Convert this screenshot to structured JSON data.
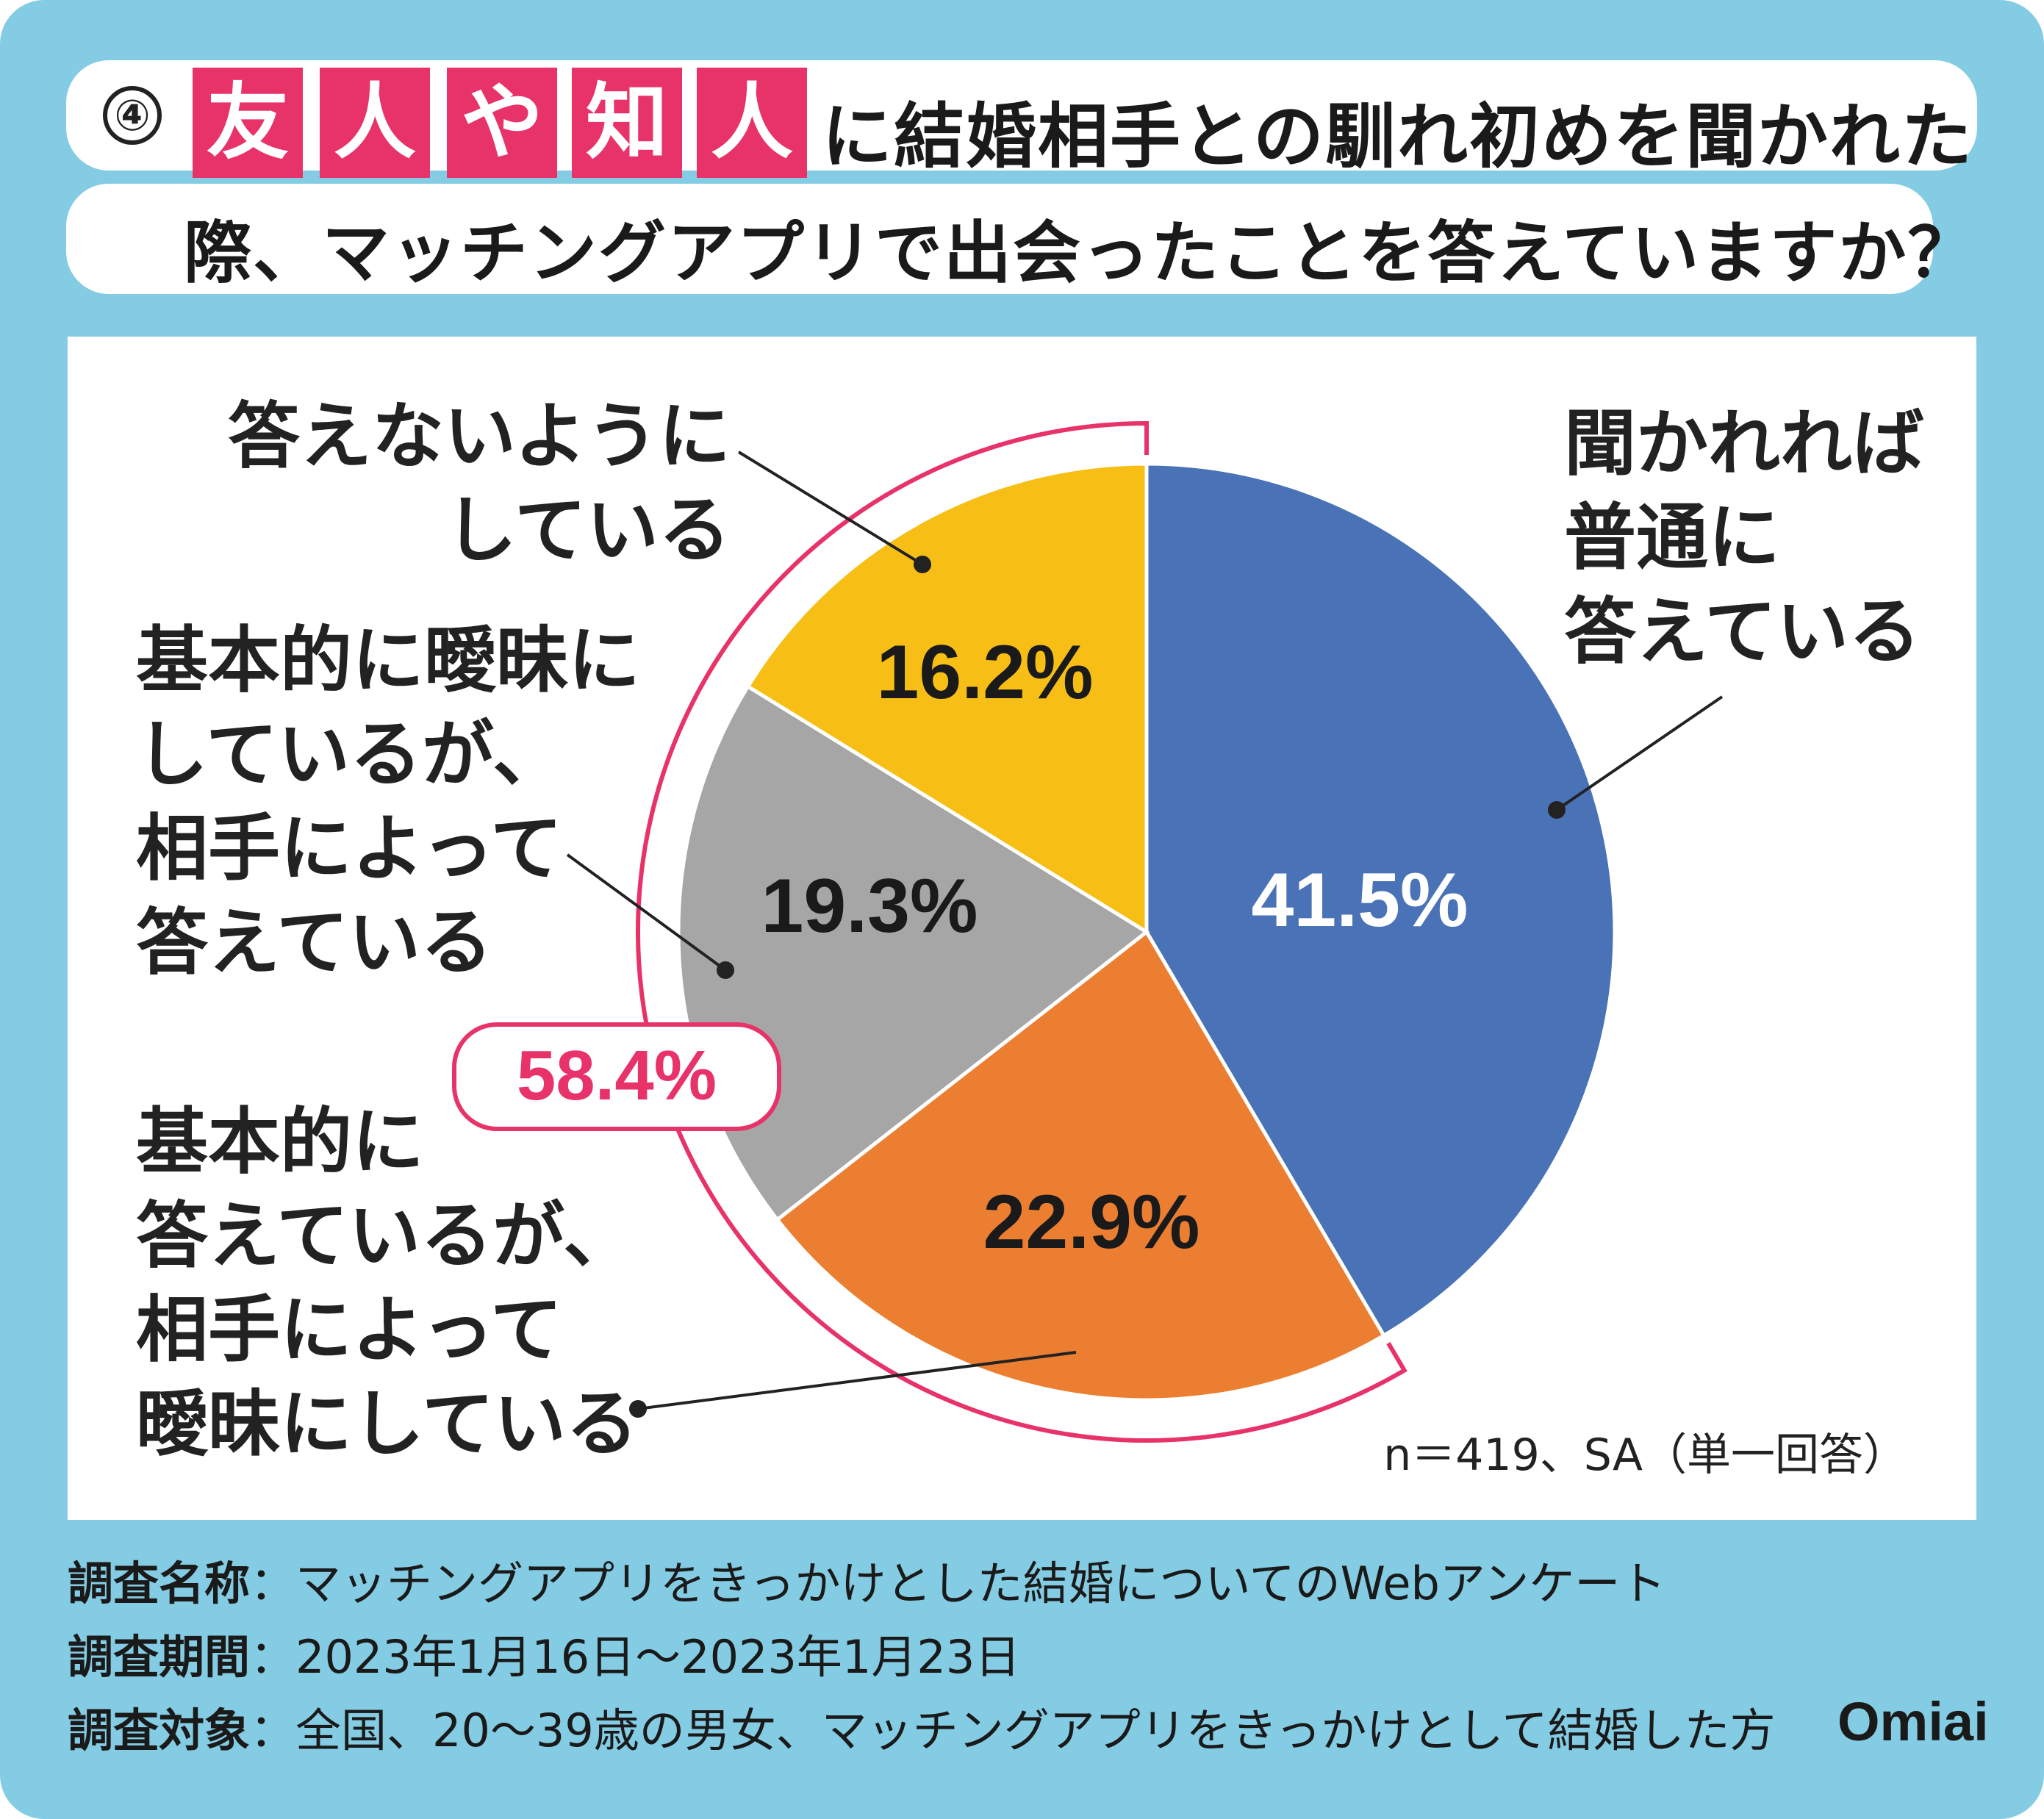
{
  "title": {
    "number": "④",
    "highlight_chars": [
      "友",
      "人",
      "や",
      "知",
      "人"
    ],
    "line1_rest": "に結婚相手との馴れ初めを聞かれた",
    "line2": "際、マッチングアプリで出会ったことを答えていますか？"
  },
  "colors": {
    "frame": "#84CCE3",
    "highlight": "#E8336A",
    "blue": "#4A72B6",
    "orange": "#EC7E32",
    "gray": "#A6A6A6",
    "yellow": "#F7BF16",
    "bracket": "#E8336A"
  },
  "chart_data": {
    "type": "pie",
    "start": "12 o'clock, clockwise",
    "categories": [
      "聞かれれば普通に答えている",
      "基本的に答えているが、相手によって曖昧にしている",
      "基本的に曖昧にしているが、相手によって答えている",
      "答えないようにしている"
    ],
    "values": [
      41.5,
      22.9,
      19.3,
      16.2
    ],
    "value_labels": [
      "41.5%",
      "22.9%",
      "19.3%",
      "16.2%"
    ],
    "label_lines": [
      [
        "聞かれれば",
        "普通に",
        "答えている"
      ],
      [
        "基本的に",
        "答えているが、",
        "相手によって",
        "曖昧にしている"
      ],
      [
        "基本的に曖昧に",
        "しているが、",
        "相手によって",
        "答えている"
      ],
      [
        "答えないように",
        "している"
      ]
    ],
    "bracket_label": "58.4%",
    "note": "n＝419、SA（単一回答）"
  },
  "footer": {
    "rows": [
      {
        "key": "調査名称",
        "value": "：マッチングアプリをきっかけとした結婚についてのWebアンケート"
      },
      {
        "key": "調査期間",
        "value": "：2023年1月16日～2023年1月23日"
      },
      {
        "key": "調査対象",
        "value": "：全国、20～39歳の男女、マッチングアプリをきっかけとして結婚した方"
      }
    ],
    "logo": "Omiai"
  }
}
